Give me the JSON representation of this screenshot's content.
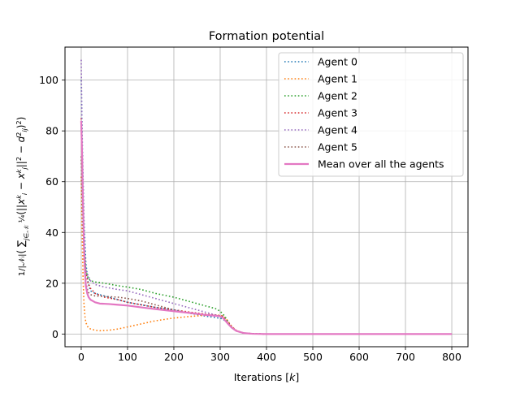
{
  "chart_data": {
    "type": "line",
    "title": "Formation potential",
    "xlabel": "Iterations [k]",
    "ylabel": "1/|N_i| ( Σ_{j∈N_i} 1/4 (||x_i^k − x_j^k||² − d_ij²)² )",
    "xlim": [
      -35,
      835
    ],
    "ylim": [
      -5,
      113
    ],
    "xticks": [
      0,
      100,
      200,
      300,
      400,
      500,
      600,
      700,
      800
    ],
    "yticks": [
      0,
      20,
      40,
      60,
      80,
      100
    ],
    "grid": true,
    "legend_position": "top-right",
    "series": [
      {
        "name": "Agent 0",
        "color": "#1f77b4",
        "style": "dotted",
        "x": [
          0,
          3,
          6,
          10,
          15,
          20,
          30,
          40,
          60,
          80,
          100,
          130,
          160,
          200,
          240,
          270,
          290,
          305,
          315,
          325,
          335,
          350,
          370,
          400,
          500,
          600,
          700,
          800
        ],
        "y": [
          100,
          70,
          45,
          28,
          20,
          17,
          16,
          15.5,
          14.5,
          13.5,
          12.5,
          11.5,
          10.5,
          9.5,
          8,
          7,
          6.5,
          6,
          4.5,
          2.5,
          1.2,
          0.4,
          0.1,
          0,
          0,
          0,
          0,
          0
        ]
      },
      {
        "name": "Agent 1",
        "color": "#ff7f0e",
        "style": "dotted",
        "x": [
          0,
          2,
          4,
          6,
          8,
          10,
          15,
          20,
          30,
          40,
          60,
          80,
          100,
          130,
          160,
          200,
          240,
          270,
          290,
          305,
          315,
          325,
          335,
          350,
          370,
          400,
          500,
          600,
          700,
          800
        ],
        "y": [
          62,
          40,
          22,
          12,
          7,
          4.5,
          2.5,
          2,
          1.5,
          1.3,
          1.5,
          2,
          2.8,
          4,
          5.2,
          6.3,
          7,
          7.4,
          7.5,
          7.2,
          5.5,
          3,
          1.4,
          0.4,
          0.1,
          0,
          0,
          0,
          0,
          0
        ]
      },
      {
        "name": "Agent 2",
        "color": "#2ca02c",
        "style": "dotted",
        "x": [
          0,
          3,
          6,
          10,
          15,
          20,
          30,
          50,
          80,
          100,
          130,
          160,
          200,
          240,
          270,
          290,
          300,
          310,
          318,
          325,
          335,
          350,
          370,
          400,
          500,
          600,
          700,
          800
        ],
        "y": [
          83,
          55,
          35,
          25,
          22,
          21,
          20.5,
          20,
          19,
          18.5,
          17.5,
          16,
          14.5,
          12.5,
          11,
          10,
          9,
          7,
          4.5,
          2.5,
          1.2,
          0.4,
          0.1,
          0,
          0,
          0,
          0,
          0
        ]
      },
      {
        "name": "Agent 3",
        "color": "#d62728",
        "style": "dotted",
        "x": [
          0,
          3,
          6,
          10,
          15,
          20,
          30,
          50,
          80,
          100,
          130,
          160,
          200,
          240,
          270,
          290,
          305,
          315,
          325,
          335,
          350,
          370,
          400,
          500,
          600,
          700,
          800
        ],
        "y": [
          85,
          55,
          35,
          24,
          20,
          18,
          16,
          14.5,
          13.5,
          12.5,
          11.5,
          10.5,
          9.5,
          8.5,
          7.8,
          7.5,
          7,
          5,
          2.8,
          1.3,
          0.4,
          0.1,
          0,
          0,
          0,
          0,
          0
        ]
      },
      {
        "name": "Agent 4",
        "color": "#9467bd",
        "style": "dotted",
        "x": [
          0,
          2,
          4,
          6,
          8,
          10,
          15,
          20,
          30,
          50,
          80,
          100,
          130,
          160,
          200,
          240,
          270,
          290,
          305,
          315,
          325,
          335,
          350,
          370,
          400,
          500,
          600,
          700,
          800
        ],
        "y": [
          108,
          75,
          50,
          35,
          28,
          25,
          23,
          21,
          19.5,
          18.5,
          17.5,
          17,
          15.5,
          14,
          12,
          10,
          8.5,
          7.5,
          6.8,
          5,
          2.8,
          1.3,
          0.4,
          0.1,
          0,
          0,
          0,
          0,
          0
        ]
      },
      {
        "name": "Agent 5",
        "color": "#8c564b",
        "style": "dotted",
        "x": [
          0,
          3,
          6,
          10,
          15,
          20,
          30,
          50,
          80,
          100,
          130,
          160,
          200,
          240,
          270,
          290,
          305,
          315,
          325,
          335,
          350,
          370,
          400,
          500,
          600,
          700,
          800
        ],
        "y": [
          70,
          45,
          30,
          20,
          16.5,
          15.5,
          15,
          14.8,
          14.5,
          14,
          13,
          11.5,
          9.5,
          8,
          7.5,
          7.3,
          7,
          5,
          2.8,
          1.3,
          0.4,
          0.1,
          0,
          0,
          0,
          0,
          0
        ]
      },
      {
        "name": "Mean over all the agents",
        "color": "#e377c2",
        "style": "solid",
        "x": [
          0,
          2,
          4,
          6,
          8,
          10,
          13,
          16,
          20,
          25,
          30,
          40,
          60,
          80,
          100,
          130,
          160,
          200,
          240,
          270,
          290,
          300,
          305,
          310,
          318,
          325,
          335,
          350,
          370,
          400,
          500,
          600,
          700,
          800
        ],
        "y": [
          84,
          70,
          50,
          35,
          25,
          19,
          16,
          14.5,
          13.5,
          13,
          12.5,
          12,
          11.8,
          11.5,
          11.2,
          10.5,
          9.8,
          9,
          8.2,
          7.5,
          7.2,
          7,
          6.5,
          5.5,
          3.8,
          2.5,
          1.2,
          0.4,
          0.1,
          0,
          0,
          0,
          0,
          0
        ]
      }
    ]
  }
}
